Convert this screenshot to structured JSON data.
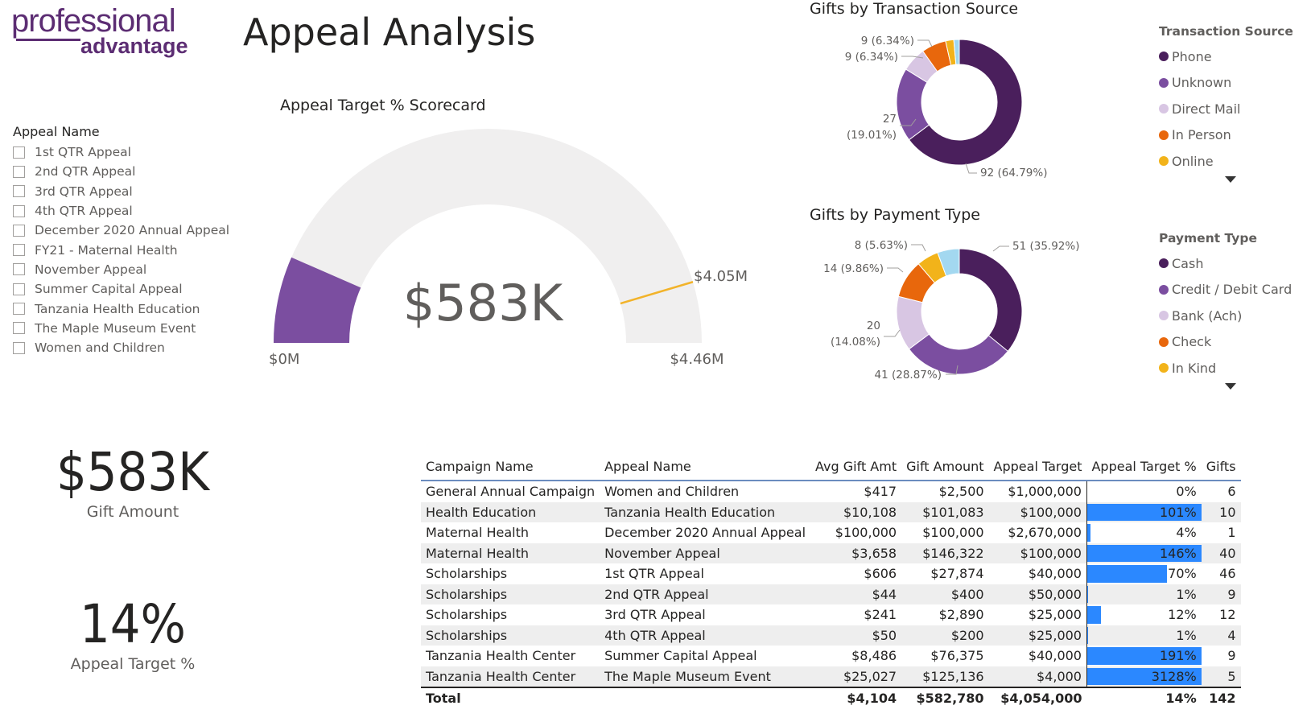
{
  "logo": {
    "line1": "professional",
    "line2": "advantage"
  },
  "title": "Appeal Analysis",
  "slicer": {
    "header": "Appeal Name",
    "items": [
      "1st QTR Appeal",
      "2nd QTR Appeal",
      "3rd QTR Appeal",
      "4th QTR Appeal",
      "December 2020 Annual Appeal",
      "FY21 - Maternal Health",
      "November Appeal",
      "Summer Capital Appeal",
      "Tanzania Health Education",
      "The Maple Museum Event",
      "Women and Children"
    ]
  },
  "gauge": {
    "title": "Appeal Target % Scorecard",
    "value_label": "$583K",
    "min_label": "$0M",
    "max_label": "$4.46M",
    "target_label": "$4.05M",
    "value": 0.583,
    "min": 0,
    "max": 4.46,
    "target": 4.05,
    "fill_color": "#7b4ea0",
    "track_color": "#f0efef",
    "target_color": "#f2b32a"
  },
  "donut1": {
    "title": "Gifts by Transaction Source",
    "legend_title": "Transaction Source",
    "segments": [
      {
        "name": "Phone",
        "value": 92,
        "label": "92 (64.79%)",
        "color": "#4a1f5c"
      },
      {
        "name": "Unknown",
        "value": 27,
        "label": "27\n(19.01%)",
        "color": "#7b4ea0"
      },
      {
        "name": "Direct Mail",
        "value": 9,
        "label": "9 (6.34%)",
        "color": "#d8c6e3"
      },
      {
        "name": "In Person",
        "value": 9,
        "label": "9 (6.34%)",
        "color": "#e8670c"
      },
      {
        "name": "Online",
        "value": 3,
        "label": "",
        "color": "#f2b31a"
      },
      {
        "name": "",
        "value": 2,
        "label": "",
        "color": "#9fd7ef"
      }
    ]
  },
  "donut2": {
    "title": "Gifts by Payment Type",
    "legend_title": "Payment Type",
    "segments": [
      {
        "name": "Cash",
        "value": 51,
        "label": "51 (35.92%)",
        "color": "#4a1f5c"
      },
      {
        "name": "Credit / Debit Card",
        "value": 41,
        "label": "41 (28.87%)",
        "color": "#7b4ea0"
      },
      {
        "name": "Bank (Ach)",
        "value": 20,
        "label": "20\n(14.08%)",
        "color": "#d8c6e3"
      },
      {
        "name": "Check",
        "value": 14,
        "label": "14 (9.86%)",
        "color": "#e8670c"
      },
      {
        "name": "In Kind",
        "value": 8,
        "label": "8 (5.63%)",
        "color": "#f2b31a"
      },
      {
        "name": "",
        "value": 8,
        "label": "",
        "color": "#a3d8f0"
      }
    ]
  },
  "cards": [
    {
      "value": "$583K",
      "label": "Gift Amount"
    },
    {
      "value": "14%",
      "label": "Appeal Target %"
    }
  ],
  "table": {
    "columns": [
      "Campaign Name",
      "Appeal Name",
      "Avg Gift Amt",
      "Gift Amount",
      "Appeal Target",
      "Appeal Target %",
      "Gifts"
    ],
    "rows": [
      [
        "General Annual Campaign",
        "Women and Children",
        "$417",
        "$2,500",
        "$1,000,000",
        "0%",
        "6"
      ],
      [
        "Health Education",
        "Tanzania Health Education",
        "$10,108",
        "$101,083",
        "$100,000",
        "101%",
        "10"
      ],
      [
        "Maternal Health",
        "December 2020 Annual Appeal",
        "$100,000",
        "$100,000",
        "$2,670,000",
        "4%",
        "1"
      ],
      [
        "Maternal Health",
        "November Appeal",
        "$3,658",
        "$146,322",
        "$100,000",
        "146%",
        "40"
      ],
      [
        "Scholarships",
        "1st QTR Appeal",
        "$606",
        "$27,874",
        "$40,000",
        "70%",
        "46"
      ],
      [
        "Scholarships",
        "2nd QTR Appeal",
        "$44",
        "$400",
        "$50,000",
        "1%",
        "9"
      ],
      [
        "Scholarships",
        "3rd QTR Appeal",
        "$241",
        "$2,890",
        "$25,000",
        "12%",
        "12"
      ],
      [
        "Scholarships",
        "4th QTR Appeal",
        "$50",
        "$200",
        "$25,000",
        "1%",
        "4"
      ],
      [
        "Tanzania Health Center",
        "Summer Capital Appeal",
        "$8,486",
        "$76,375",
        "$40,000",
        "191%",
        "9"
      ],
      [
        "Tanzania Health Center",
        "The Maple Museum Event",
        "$25,027",
        "$125,136",
        "$4,000",
        "3128%",
        "5"
      ]
    ],
    "pct_bar_fill": [
      0.0,
      1.0,
      0.03,
      1.0,
      0.7,
      0.01,
      0.12,
      0.01,
      1.0,
      1.0
    ],
    "total": [
      "Total",
      "",
      "$4,104",
      "$582,780",
      "$4,054,000",
      "14%",
      "142"
    ],
    "bar_color": "#2b88ff"
  }
}
